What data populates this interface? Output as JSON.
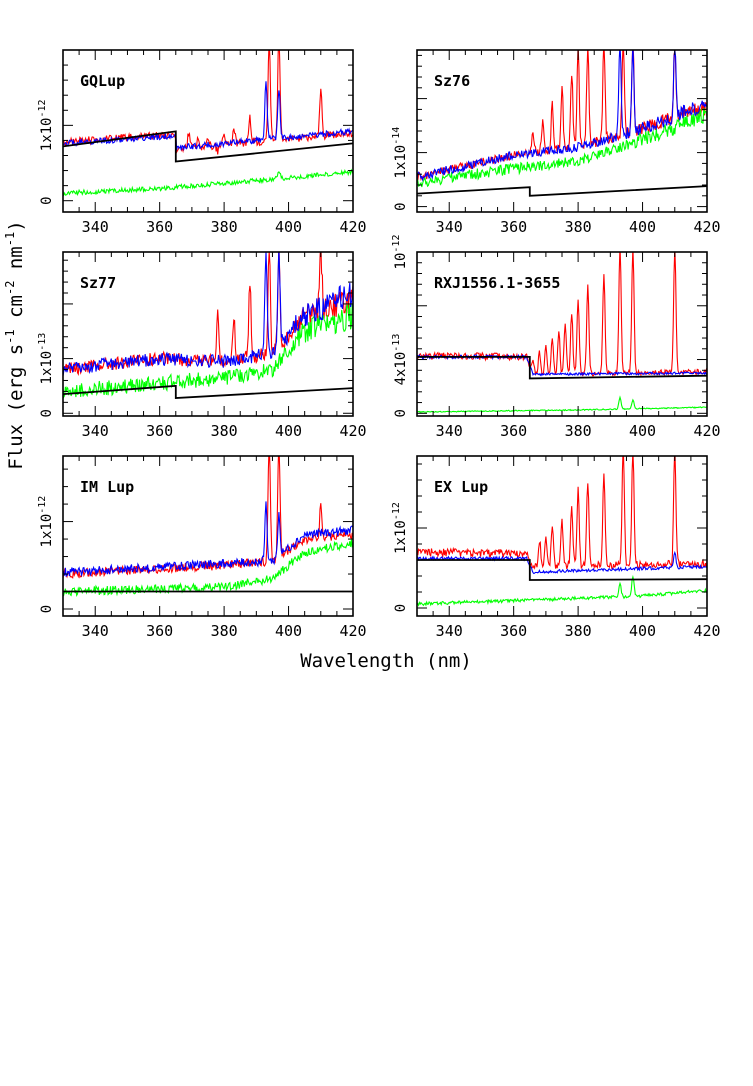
{
  "figure": {
    "ylabel": "Flux (erg s",
    "ylabel_sup1": "-1",
    "ylabel_mid": " cm",
    "ylabel_sup2": "-2",
    "ylabel_mid2": " nm",
    "ylabel_sup3": "-1",
    "ylabel_end": ")",
    "xlabel": "Wavelength (nm)"
  },
  "colors": {
    "red": "#ff0000",
    "blue": "#0000ff",
    "green": "#00ff00",
    "black": "#000000"
  },
  "chart_data": [
    {
      "type": "line",
      "title": "GQLup",
      "xlim": [
        330,
        420
      ],
      "ylim": [
        -0.15,
        2.0
      ],
      "xticks": [
        "340",
        "360",
        "380",
        "400",
        "420"
      ],
      "yticks": [
        {
          "value": 0,
          "label": "0"
        },
        {
          "value": 1,
          "label": "1x10",
          "exp": "-12"
        }
      ],
      "model": {
        "left": [
          [
            330,
            0.72
          ],
          [
            365,
            0.92
          ]
        ],
        "right": [
          [
            365,
            0.52
          ],
          [
            420,
            0.76
          ]
        ]
      },
      "series": [
        {
          "name": "red",
          "shape": [
            [
              330,
              0.78
            ],
            [
              365,
              0.88
            ],
            [
              365,
              0.68
            ],
            [
              420,
              0.9
            ]
          ],
          "noise": 0.05,
          "lines": [
            [
              369,
              0.9
            ],
            [
              372,
              0.85
            ],
            [
              375,
              0.8
            ],
            [
              378,
              0.65
            ],
            [
              380,
              0.9
            ],
            [
              383,
              1.0
            ],
            [
              388,
              1.1
            ],
            [
              394,
              2.2
            ],
            [
              397,
              2.2
            ],
            [
              410,
              1.5
            ]
          ]
        },
        {
          "name": "blue",
          "shape": [
            [
              330,
              0.76
            ],
            [
              365,
              0.86
            ],
            [
              365,
              0.7
            ],
            [
              420,
              0.92
            ]
          ],
          "noise": 0.04,
          "lines": [
            [
              393,
              1.6
            ],
            [
              397,
              1.5
            ]
          ]
        },
        {
          "name": "green",
          "shape": [
            [
              330,
              0.1
            ],
            [
              360,
              0.16
            ],
            [
              385,
              0.25
            ],
            [
              420,
              0.38
            ]
          ],
          "noise": 0.03,
          "lines": [
            [
              397,
              0.4
            ]
          ]
        }
      ]
    },
    {
      "type": "line",
      "title": "Sz76",
      "xlim": [
        330,
        420
      ],
      "ylim": [
        -0.1,
        2.9
      ],
      "xticks": [
        "340",
        "360",
        "380",
        "400",
        "420"
      ],
      "yticks": [
        {
          "value": 0,
          "label": "0"
        },
        {
          "value": 1,
          "label": "1x10",
          "exp": "-14"
        }
      ],
      "model": {
        "left": [
          [
            330,
            0.24
          ],
          [
            365,
            0.36
          ]
        ],
        "right": [
          [
            365,
            0.2
          ],
          [
            420,
            0.38
          ]
        ]
      },
      "series": [
        {
          "name": "red",
          "shape": [
            [
              330,
              0.55
            ],
            [
              360,
              0.95
            ],
            [
              380,
              1.1
            ],
            [
              400,
              1.45
            ],
            [
              420,
              1.85
            ]
          ],
          "noise": 0.08,
          "lines": [
            [
              366,
              1.4
            ],
            [
              369,
              1.6
            ],
            [
              372,
              1.9
            ],
            [
              375,
              2.2
            ],
            [
              378,
              2.5
            ],
            [
              380,
              3.0
            ],
            [
              383,
              3.0
            ],
            [
              388,
              3.0
            ],
            [
              394,
              3.0
            ],
            [
              397,
              3.0
            ],
            [
              410,
              3.0
            ]
          ]
        },
        {
          "name": "blue",
          "shape": [
            [
              330,
              0.55
            ],
            [
              360,
              0.95
            ],
            [
              380,
              1.1
            ],
            [
              400,
              1.45
            ],
            [
              420,
              1.9
            ]
          ],
          "noise": 0.08,
          "lines": [
            [
              393,
              3.0
            ],
            [
              397,
              3.0
            ],
            [
              410,
              3.0
            ]
          ]
        },
        {
          "name": "green",
          "shape": [
            [
              330,
              0.45
            ],
            [
              360,
              0.7
            ],
            [
              380,
              0.85
            ],
            [
              400,
              1.25
            ],
            [
              420,
              1.7
            ]
          ],
          "noise": 0.1,
          "lines": []
        }
      ]
    },
    {
      "type": "line",
      "title": "Sz77",
      "xlim": [
        330,
        420
      ],
      "ylim": [
        -0.05,
        2.95
      ],
      "xticks": [
        "340",
        "360",
        "380",
        "400",
        "420"
      ],
      "yticks": [
        {
          "value": 0,
          "label": "0"
        },
        {
          "value": 1,
          "label": "1x10",
          "exp": "-13"
        }
      ],
      "model": {
        "left": [
          [
            330,
            0.35
          ],
          [
            365,
            0.5
          ]
        ],
        "right": [
          [
            365,
            0.28
          ],
          [
            420,
            0.46
          ]
        ]
      },
      "series": [
        {
          "name": "red",
          "shape": [
            [
              330,
              0.8
            ],
            [
              360,
              1.0
            ],
            [
              380,
              0.95
            ],
            [
              395,
              1.1
            ],
            [
              405,
              1.8
            ],
            [
              420,
              2.1
            ]
          ],
          "noise": 0.12,
          "lines": [
            [
              378,
              1.8
            ],
            [
              383,
              1.8
            ],
            [
              388,
              2.4
            ],
            [
              394,
              3.0
            ],
            [
              397,
              3.0
            ],
            [
              410,
              3.0
            ]
          ]
        },
        {
          "name": "blue",
          "shape": [
            [
              330,
              0.8
            ],
            [
              360,
              1.0
            ],
            [
              380,
              0.95
            ],
            [
              395,
              1.1
            ],
            [
              405,
              1.8
            ],
            [
              420,
              2.2
            ]
          ],
          "noise": 0.12,
          "lines": [
            [
              393,
              3.0
            ],
            [
              397,
              3.0
            ]
          ]
        },
        {
          "name": "green",
          "shape": [
            [
              330,
              0.4
            ],
            [
              360,
              0.55
            ],
            [
              380,
              0.65
            ],
            [
              395,
              0.8
            ],
            [
              405,
              1.5
            ],
            [
              420,
              1.8
            ]
          ],
          "noise": 0.14,
          "lines": []
        }
      ]
    },
    {
      "type": "line",
      "title": "RXJ1556.1-3655",
      "xlim": [
        330,
        420
      ],
      "ylim": [
        -0.2,
        12.0
      ],
      "xticks": [
        "340",
        "360",
        "380",
        "400",
        "420"
      ],
      "yticks": [
        {
          "value": 0,
          "label": "0"
        },
        {
          "value": 4,
          "label": "4x10",
          "exp": "-13"
        },
        {
          "value": 12,
          "label": "10",
          "exp": "-12"
        }
      ],
      "model": {
        "left": [
          [
            330,
            4.2
          ],
          [
            365,
            4.2
          ]
        ],
        "right": [
          [
            365,
            2.6
          ],
          [
            420,
            2.8
          ]
        ]
      },
      "series": [
        {
          "name": "red",
          "shape": [
            [
              330,
              4.3
            ],
            [
              364,
              4.2
            ],
            [
              366,
              2.9
            ],
            [
              420,
              3.1
            ]
          ],
          "noise": 0.06,
          "lines": [
            [
              366,
              4.0
            ],
            [
              368,
              4.5
            ],
            [
              370,
              5.0
            ],
            [
              372,
              5.6
            ],
            [
              374,
              6.2
            ],
            [
              376,
              6.8
            ],
            [
              378,
              7.5
            ],
            [
              380,
              8.5
            ],
            [
              383,
              9.5
            ],
            [
              388,
              10.5
            ],
            [
              393,
              12.5
            ],
            [
              397,
              12.5
            ],
            [
              410,
              12.5
            ]
          ]
        },
        {
          "name": "blue",
          "shape": [
            [
              330,
              4.2
            ],
            [
              364,
              4.2
            ],
            [
              366,
              2.9
            ],
            [
              420,
              3.0
            ]
          ],
          "noise": 0.03,
          "lines": []
        },
        {
          "name": "green",
          "shape": [
            [
              330,
              0.1
            ],
            [
              380,
              0.25
            ],
            [
              420,
              0.45
            ]
          ],
          "noise": 0.04,
          "lines": [
            [
              393,
              1.2
            ],
            [
              397,
              1.0
            ]
          ]
        }
      ]
    },
    {
      "type": "line",
      "title": "IM Lup",
      "xlim": [
        330,
        420
      ],
      "ylim": [
        -0.08,
        1.75
      ],
      "xticks": [
        "340",
        "360",
        "380",
        "400",
        "420"
      ],
      "yticks": [
        {
          "value": 0,
          "label": "0"
        },
        {
          "value": 1,
          "label": "1x10",
          "exp": "-12"
        }
      ],
      "model": {
        "left": [
          [
            330,
            0.2
          ],
          [
            420,
            0.2
          ]
        ],
        "right": [
          [
            420,
            0.2
          ],
          [
            420,
            0.2
          ]
        ]
      },
      "series": [
        {
          "name": "red",
          "shape": [
            [
              330,
              0.4
            ],
            [
              380,
              0.5
            ],
            [
              395,
              0.55
            ],
            [
              405,
              0.8
            ],
            [
              420,
              0.85
            ]
          ],
          "noise": 0.05,
          "lines": [
            [
              394,
              1.9
            ],
            [
              397,
              1.9
            ],
            [
              410,
              1.2
            ]
          ]
        },
        {
          "name": "blue",
          "shape": [
            [
              330,
              0.42
            ],
            [
              380,
              0.52
            ],
            [
              395,
              0.55
            ],
            [
              405,
              0.85
            ],
            [
              420,
              0.9
            ]
          ],
          "noise": 0.05,
          "lines": [
            [
              393,
              1.2
            ],
            [
              397,
              1.1
            ]
          ]
        },
        {
          "name": "green",
          "shape": [
            [
              330,
              0.2
            ],
            [
              380,
              0.25
            ],
            [
              395,
              0.35
            ],
            [
              405,
              0.65
            ],
            [
              420,
              0.75
            ]
          ],
          "noise": 0.05,
          "lines": []
        }
      ]
    },
    {
      "type": "line",
      "title": "EX Lup",
      "xlim": [
        330,
        420
      ],
      "ylim": [
        -0.1,
        1.9
      ],
      "xticks": [
        "340",
        "360",
        "380",
        "400",
        "420"
      ],
      "yticks": [
        {
          "value": 0,
          "label": "0"
        },
        {
          "value": 1,
          "label": "1x10",
          "exp": "-12"
        }
      ],
      "model": {
        "left": [
          [
            330,
            0.6
          ],
          [
            365,
            0.6
          ]
        ],
        "right": [
          [
            365,
            0.35
          ],
          [
            420,
            0.36
          ]
        ]
      },
      "series": [
        {
          "name": "red",
          "shape": [
            [
              330,
              0.7
            ],
            [
              364,
              0.68
            ],
            [
              366,
              0.52
            ],
            [
              420,
              0.55
            ]
          ],
          "noise": 0.05,
          "lines": [
            [
              368,
              0.85
            ],
            [
              370,
              0.9
            ],
            [
              372,
              1.0
            ],
            [
              375,
              1.1
            ],
            [
              378,
              1.3
            ],
            [
              380,
              1.5
            ],
            [
              383,
              1.6
            ],
            [
              388,
              1.7
            ],
            [
              394,
              2.0
            ],
            [
              397,
              2.0
            ],
            [
              410,
              2.0
            ]
          ]
        },
        {
          "name": "blue",
          "shape": [
            [
              330,
              0.62
            ],
            [
              364,
              0.62
            ],
            [
              366,
              0.45
            ],
            [
              420,
              0.52
            ]
          ],
          "noise": 0.02,
          "lines": [
            [
              410,
              0.7
            ]
          ]
        },
        {
          "name": "green",
          "shape": [
            [
              330,
              0.05
            ],
            [
              380,
              0.12
            ],
            [
              400,
              0.15
            ],
            [
              420,
              0.22
            ]
          ],
          "noise": 0.02,
          "lines": [
            [
              393,
              0.3
            ],
            [
              397,
              0.4
            ]
          ]
        }
      ]
    }
  ]
}
